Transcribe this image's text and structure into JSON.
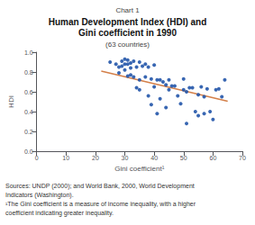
{
  "chart_data": {
    "type": "scatter",
    "chart_label": "Chart 1",
    "title": [
      "Human Development Index (HDI) and",
      "Gini coefficient in 1990"
    ],
    "subtitle": "(63 countries)",
    "xlabel": "Gini coefficient¹",
    "ylabel": "HDI",
    "xlim": [
      0,
      70
    ],
    "ylim": [
      0,
      1.0
    ],
    "xticks": [
      0,
      10,
      20,
      30,
      40,
      50,
      60,
      70
    ],
    "yticks": [
      {
        "value": 0,
        "label": "0.0"
      },
      0.2,
      0.4,
      0.6,
      0.8,
      {
        "value": 1,
        "label": "1.0"
      }
    ],
    "grid": false,
    "series": [
      {
        "type": "scatter",
        "color": "#2255aa",
        "x": [
          25,
          27,
          28,
          28,
          29,
          29,
          30,
          30,
          30,
          31,
          31,
          31,
          32,
          32,
          32,
          33,
          33,
          34,
          34,
          35,
          35,
          35,
          36,
          37,
          37,
          38,
          38,
          39,
          39,
          40,
          40,
          41,
          41,
          42,
          42,
          43,
          44,
          44,
          45,
          45,
          46,
          47,
          48,
          49,
          50,
          50,
          51,
          51,
          52,
          53,
          54,
          55,
          55,
          56,
          57,
          57,
          58,
          59,
          60,
          61,
          62,
          63,
          64
        ],
        "values": [
          0.9,
          0.88,
          0.85,
          0.79,
          0.91,
          0.86,
          0.93,
          0.88,
          0.82,
          0.92,
          0.88,
          0.76,
          0.89,
          0.84,
          0.77,
          0.91,
          0.75,
          0.85,
          0.64,
          0.9,
          0.72,
          0.62,
          0.86,
          0.88,
          0.75,
          0.85,
          0.56,
          0.73,
          0.47,
          0.87,
          0.65,
          0.72,
          0.38,
          0.72,
          0.53,
          0.7,
          0.67,
          0.44,
          0.72,
          0.62,
          0.66,
          0.66,
          0.56,
          0.48,
          0.73,
          0.62,
          0.6,
          0.28,
          0.64,
          0.64,
          0.4,
          0.57,
          0.36,
          0.65,
          0.55,
          0.38,
          0.63,
          0.4,
          0.32,
          0.62,
          0.63,
          0.55,
          0.72
        ]
      },
      {
        "type": "line",
        "color": "#d4804a",
        "x": [
          22,
          65
        ],
        "values": [
          0.81,
          0.505
        ]
      }
    ],
    "annotations": [
      "Sources: UNDP (2000); and World Bank, 2000, World Development",
      "Indicators (Washington).",
      "¹The Gini coefficient is a measure of income inequality, with a higher",
      "coefficient indicating greater inequality."
    ]
  }
}
